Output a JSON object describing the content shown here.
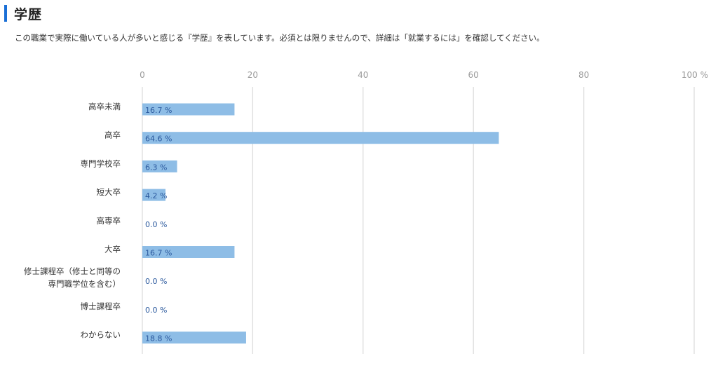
{
  "section": {
    "title": "学歴",
    "description": "この職業で実際に働いている人が多いと感じる『学歴』を表しています。必須とは限りませんので、詳細は「就業するには」を確認してください。"
  },
  "colors": {
    "accent": "#1a6fd6",
    "bar": "#8ebde6",
    "data_label": "#2c5a9e"
  },
  "chart_data": {
    "type": "bar",
    "orientation": "horizontal",
    "title": "学歴",
    "xlim": [
      0,
      100
    ],
    "xticks": [
      "0",
      "20",
      "40",
      "60",
      "80",
      "100 %"
    ],
    "grid": true,
    "categories": [
      [
        "高卒未満"
      ],
      [
        "高卒"
      ],
      [
        "専門学校卒"
      ],
      [
        "短大卒"
      ],
      [
        "高専卒"
      ],
      [
        "大卒"
      ],
      [
        "修士課程卒（修士と同等の",
        "専門職学位を含む）"
      ],
      [
        "博士課程卒"
      ],
      [
        "わからない"
      ]
    ],
    "values": [
      16.7,
      64.6,
      6.3,
      4.2,
      0.0,
      16.7,
      0.0,
      0.0,
      18.8
    ],
    "data_labels": [
      "16.7 %",
      "64.6 %",
      "6.3 %",
      "4.2 %",
      "0.0 %",
      "16.7 %",
      "0.0 %",
      "0.0 %",
      "18.8 %"
    ]
  }
}
